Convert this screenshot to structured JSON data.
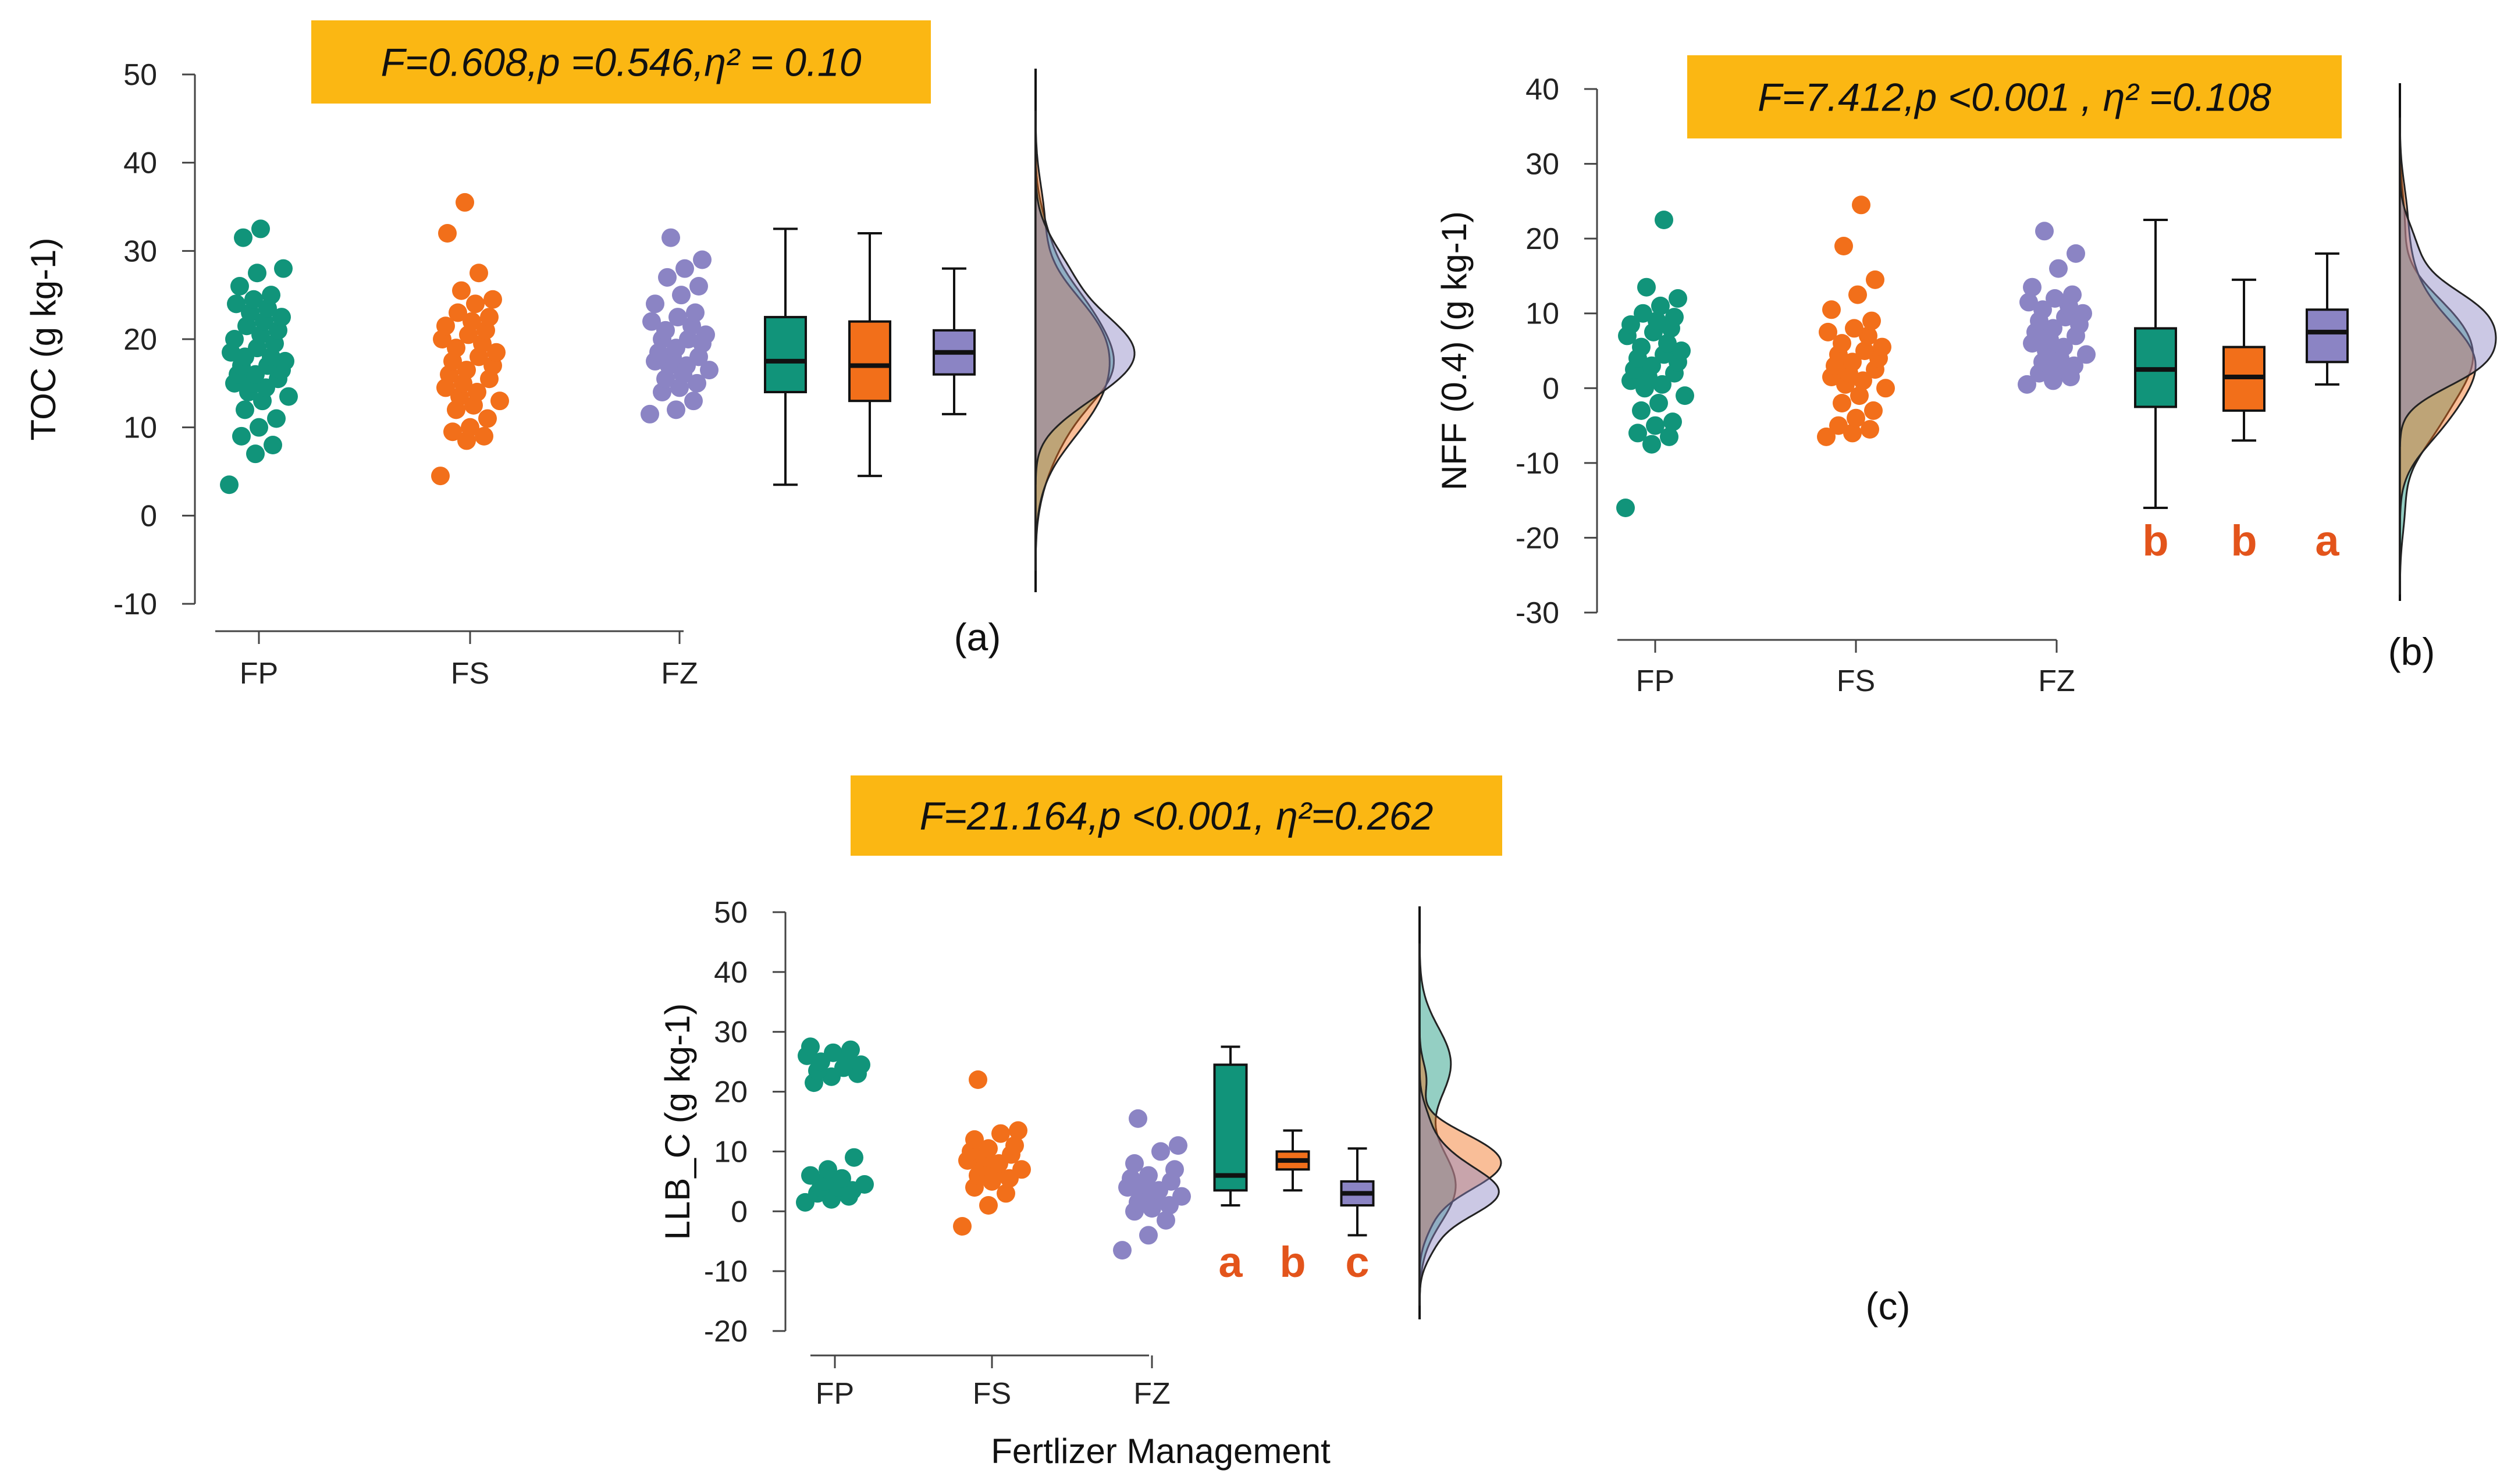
{
  "colors": {
    "FP": "#11947a",
    "FS": "#f26f1a",
    "FZ": "#8b84c4",
    "stats_box": "#fbb713",
    "sig_letters": "#e3541b",
    "axis": "#444444"
  },
  "x_axis_title": "Fertlizer Management",
  "chart_data": [
    {
      "type": "raincloud",
      "panel_label": "(a)",
      "ylabel": "TOC (g kg-1)",
      "stats": "F=0.608,p =0.546,η² = 0.10",
      "categories": [
        "FP",
        "FS",
        "FZ"
      ],
      "yticks": [
        50,
        40,
        30,
        20,
        10,
        0,
        -10
      ],
      "ylim": [
        -10,
        50
      ],
      "boxes": [
        {
          "name": "FP",
          "min": 3.5,
          "q1": 14,
          "median": 17.5,
          "q3": 22.5,
          "max": 32.5
        },
        {
          "name": "FS",
          "min": 4.5,
          "q1": 13,
          "median": 17,
          "q3": 22,
          "max": 32
        },
        {
          "name": "FZ",
          "min": 11.5,
          "q1": 16,
          "median": 18.5,
          "q3": 21,
          "max": 28
        }
      ],
      "significance_letters": [],
      "points": {
        "FP": [
          3.5,
          7,
          8,
          9,
          10,
          11,
          12,
          13,
          13.5,
          14,
          14.5,
          15,
          15,
          15.5,
          16,
          16,
          16.5,
          17,
          17,
          17.5,
          18,
          18,
          18.5,
          19,
          19.5,
          20,
          20.5,
          21,
          21.5,
          22,
          22.5,
          23,
          23.5,
          24,
          24.5,
          25,
          26,
          27.5,
          28,
          31.5,
          32.5
        ],
        "FS": [
          4.5,
          8.5,
          9,
          9.5,
          10,
          11,
          12,
          12.5,
          13,
          13.5,
          14,
          14.5,
          15,
          15.5,
          16,
          16.5,
          17,
          17.5,
          18,
          18.5,
          19,
          19.5,
          20,
          20.5,
          21,
          21.5,
          22,
          22.5,
          23,
          24,
          24.5,
          25.5,
          27.5,
          32,
          35.5
        ],
        "FZ": [
          11.5,
          12,
          13,
          14,
          14.5,
          15,
          15.5,
          16,
          16.5,
          17,
          17,
          17.5,
          18,
          18,
          18.5,
          19,
          19.5,
          20,
          20,
          20.5,
          21,
          21.5,
          22,
          22.5,
          23,
          24,
          25,
          26,
          27,
          28,
          29,
          31.5
        ]
      }
    },
    {
      "type": "raincloud",
      "panel_label": "(b)",
      "ylabel": "NFF (0.4) (g kg-1)",
      "stats": "F=7.412,p <0.001 , η² =0.108",
      "categories": [
        "FP",
        "FS",
        "FZ"
      ],
      "yticks": [
        40,
        30,
        20,
        10,
        0,
        -10,
        -20,
        -30
      ],
      "ylim": [
        -30,
        40
      ],
      "boxes": [
        {
          "name": "FP",
          "min": -16,
          "q1": -2.5,
          "median": 2.5,
          "q3": 8,
          "max": 22.5
        },
        {
          "name": "FS",
          "min": -7,
          "q1": -3,
          "median": 1.5,
          "q3": 5.5,
          "max": 14.5
        },
        {
          "name": "FZ",
          "min": 0.5,
          "q1": 3.5,
          "median": 7.5,
          "q3": 10.5,
          "max": 18
        }
      ],
      "significance_letters": [
        "b",
        "b",
        "a"
      ],
      "points": {
        "FP": [
          -16,
          -7.5,
          -6.5,
          -6,
          -5,
          -4.5,
          -3,
          -2,
          -1,
          0,
          0.5,
          1,
          1.5,
          2,
          2.5,
          3,
          3.5,
          4,
          4.5,
          5,
          5.5,
          6,
          7,
          7.5,
          8,
          8.5,
          9,
          9.5,
          10,
          11,
          12,
          13.5,
          22.5
        ],
        "FS": [
          -6.5,
          -6,
          -5.5,
          -5,
          -4,
          -3,
          -2,
          -1,
          0,
          0.5,
          1,
          1.5,
          2,
          2.5,
          3,
          3.5,
          4,
          4.5,
          5,
          5.5,
          6,
          7,
          7.5,
          8,
          9,
          10.5,
          12.5,
          14.5,
          19,
          24.5
        ],
        "FZ": [
          0.5,
          1,
          1.5,
          2,
          2.5,
          3,
          3.5,
          4,
          4.5,
          5,
          5.5,
          6,
          6.5,
          7,
          7.5,
          8,
          8.5,
          9,
          9.5,
          10,
          10.5,
          11,
          11.5,
          12,
          12.5,
          13.5,
          16,
          18,
          21
        ]
      }
    },
    {
      "type": "raincloud",
      "panel_label": "(c)",
      "ylabel": "LLB_C (g kg-1)",
      "stats": "F=21.164,p <0.001, η²=0.262",
      "categories": [
        "FP",
        "FS",
        "FZ"
      ],
      "yticks": [
        50,
        40,
        30,
        20,
        10,
        0,
        -10,
        -20
      ],
      "ylim": [
        -20,
        50
      ],
      "boxes": [
        {
          "name": "FP",
          "min": 1,
          "q1": 3.5,
          "median": 6,
          "q3": 24.5,
          "max": 27.5
        },
        {
          "name": "FS",
          "min": 3.5,
          "q1": 7,
          "median": 8.5,
          "q3": 10,
          "max": 13.5
        },
        {
          "name": "FZ",
          "min": -4,
          "q1": 1,
          "median": 3,
          "q3": 5,
          "max": 10.5
        }
      ],
      "significance_letters": [
        "a",
        "b",
        "c"
      ],
      "points": {
        "FP": [
          1.5,
          2,
          2.5,
          3,
          3,
          3.5,
          4,
          4,
          4.5,
          5,
          5.5,
          6,
          7,
          9,
          21.5,
          22.5,
          23,
          23.5,
          24,
          24.5,
          25,
          25.5,
          26,
          26.5,
          27,
          27.5
        ],
        "FS": [
          -2.5,
          1,
          3,
          4,
          5,
          5.5,
          6,
          6.5,
          7,
          7.5,
          8,
          8.5,
          9,
          9.5,
          10,
          10.5,
          11,
          12,
          13,
          13.5,
          22
        ],
        "FZ": [
          -6.5,
          -4,
          -1.5,
          0,
          0.5,
          1,
          1.5,
          2,
          2.5,
          3,
          3.5,
          4,
          4.5,
          5,
          5.5,
          6,
          7,
          8,
          10,
          11,
          15.5
        ]
      }
    }
  ]
}
